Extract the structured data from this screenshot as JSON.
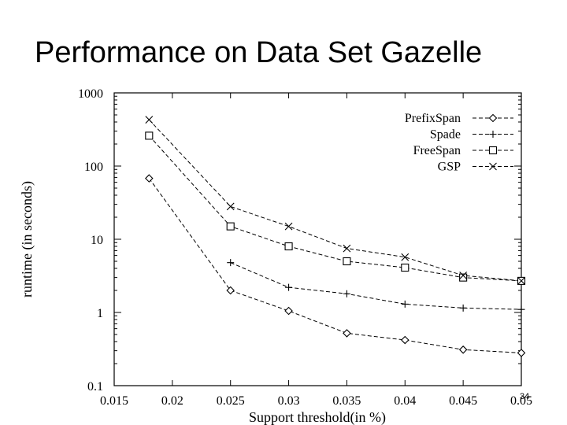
{
  "slide": {
    "title": "Performance on Data Set Gazelle",
    "number": "34"
  },
  "chart_data": {
    "type": "line",
    "title": "",
    "xlabel": "Support threshold(in %)",
    "ylabel": "runtime (in seconds)",
    "xlim": [
      0.015,
      0.05
    ],
    "ylim": [
      0.1,
      1000
    ],
    "y_scale": "log",
    "x_ticks": [
      "0.015",
      "0.02",
      "0.025",
      "0.03",
      "0.035",
      "0.04",
      "0.045",
      "0.05"
    ],
    "y_ticks": [
      "0.1",
      "1",
      "10",
      "100",
      "1000"
    ],
    "legend_position": "top-right",
    "grid": false,
    "series": [
      {
        "name": "PrefixSpan",
        "marker": "diamond",
        "x": [
          0.018,
          0.025,
          0.03,
          0.035,
          0.04,
          0.045,
          0.05
        ],
        "y": [
          68,
          2.0,
          1.05,
          0.52,
          0.42,
          0.31,
          0.28
        ]
      },
      {
        "name": "Spade",
        "marker": "plus",
        "x": [
          0.025,
          0.03,
          0.035,
          0.04,
          0.045,
          0.05
        ],
        "y": [
          4.8,
          2.2,
          1.8,
          1.3,
          1.15,
          1.1
        ]
      },
      {
        "name": "FreeSpan",
        "marker": "square",
        "x": [
          0.018,
          0.025,
          0.03,
          0.035,
          0.04,
          0.045,
          0.05
        ],
        "y": [
          260,
          15,
          8.0,
          5.0,
          4.1,
          3.0,
          2.7
        ]
      },
      {
        "name": "GSP",
        "marker": "cross",
        "x": [
          0.018,
          0.025,
          0.03,
          0.035,
          0.04,
          0.045,
          0.05
        ],
        "y": [
          430,
          28,
          15,
          7.5,
          5.7,
          3.2,
          2.7
        ]
      }
    ]
  }
}
